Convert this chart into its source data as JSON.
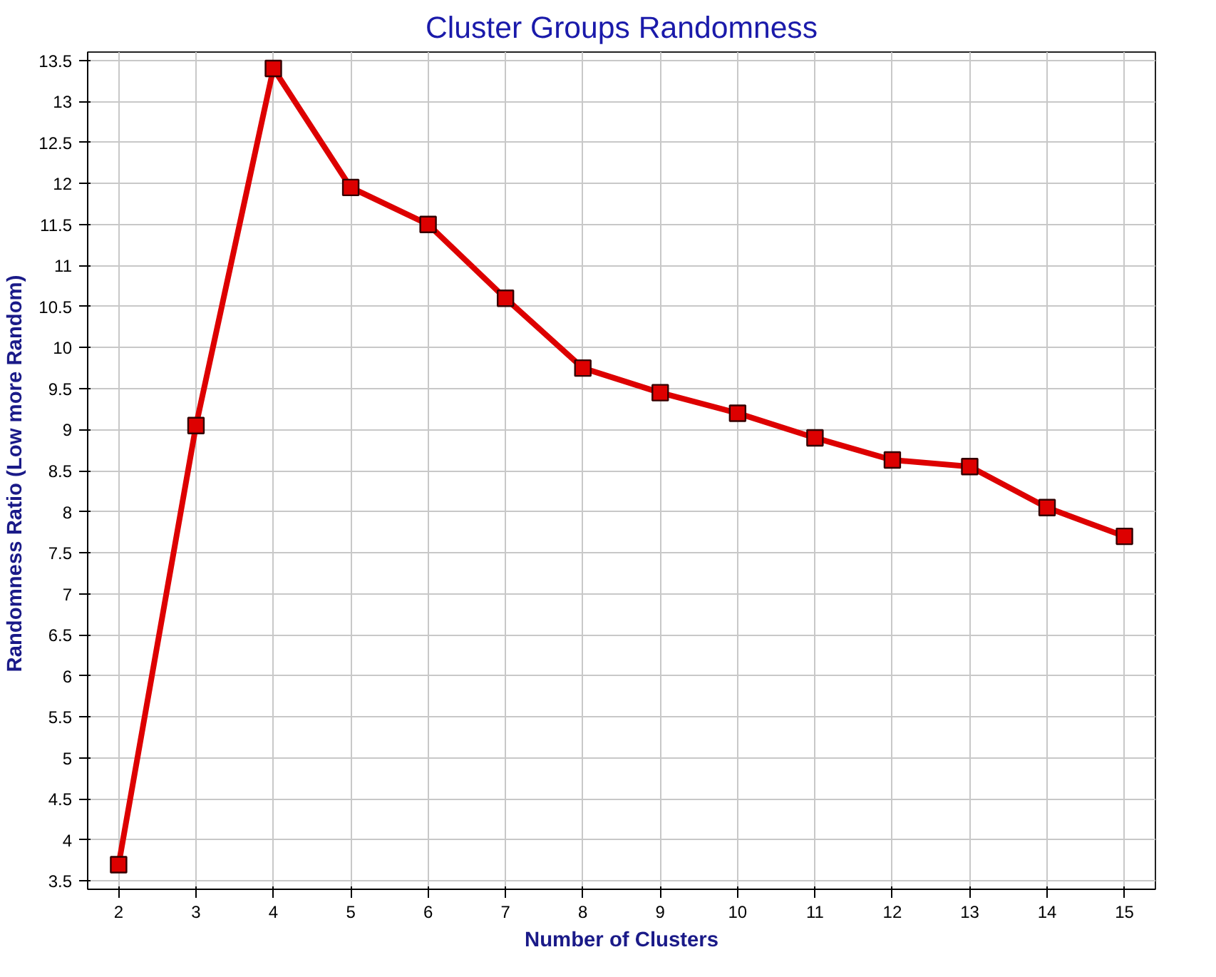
{
  "chart_data": {
    "type": "line",
    "title": "Cluster Groups Randomness",
    "xlabel": "Number of Clusters",
    "ylabel": "Randomness Ratio  (Low more Random)",
    "x": [
      2,
      3,
      4,
      5,
      6,
      7,
      8,
      9,
      10,
      11,
      12,
      13,
      14,
      15
    ],
    "series": [
      {
        "color": "#dd0000",
        "values": [
          3.7,
          9.05,
          13.4,
          11.95,
          11.5,
          10.6,
          9.75,
          9.45,
          9.2,
          8.9,
          8.63,
          8.55,
          8.05,
          7.7
        ]
      }
    ],
    "xlim": [
      1.6,
      15.4
    ],
    "ylim": [
      3.4,
      13.6
    ],
    "xticks": [
      2,
      3,
      4,
      5,
      6,
      7,
      8,
      9,
      10,
      11,
      12,
      13,
      14,
      15
    ],
    "yticks": [
      3.5,
      4,
      4.5,
      5,
      5.5,
      6,
      6.5,
      7,
      7.5,
      8,
      8.5,
      9,
      9.5,
      10,
      10.5,
      11,
      11.5,
      12,
      12.5,
      13,
      13.5
    ],
    "grid": true,
    "marker": "square",
    "line_style": "solid"
  }
}
